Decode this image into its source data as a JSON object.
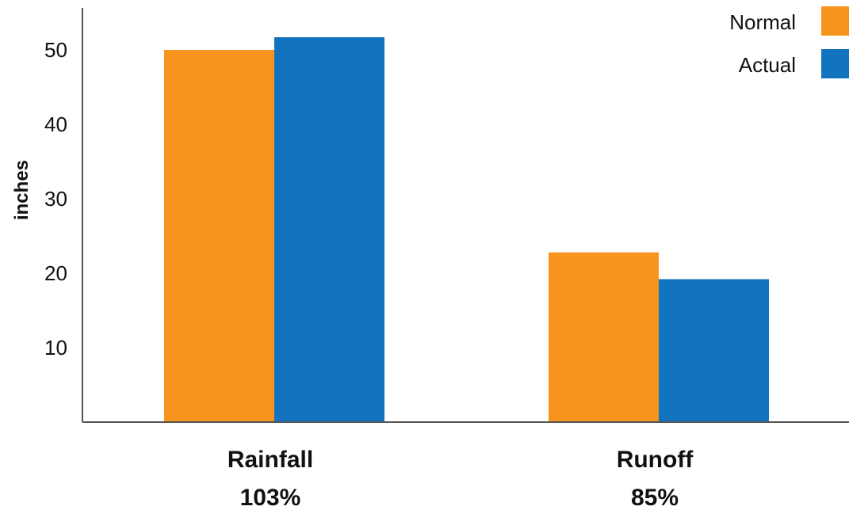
{
  "chart_data": {
    "type": "bar",
    "title": "",
    "xlabel": "",
    "ylabel": "inches",
    "ylim": [
      0,
      55
    ],
    "yticks": [
      10,
      20,
      30,
      40,
      50
    ],
    "categories": [
      "Rainfall",
      "Runoff"
    ],
    "category_sublabels": [
      "103%",
      "85%"
    ],
    "series": [
      {
        "name": "Normal",
        "color": "#F7941D",
        "values": [
          50,
          22.8
        ]
      },
      {
        "name": "Actual",
        "color": "#1273BE",
        "values": [
          51.7,
          19.2
        ]
      }
    ],
    "legend_position": "top-right",
    "grid": false
  }
}
